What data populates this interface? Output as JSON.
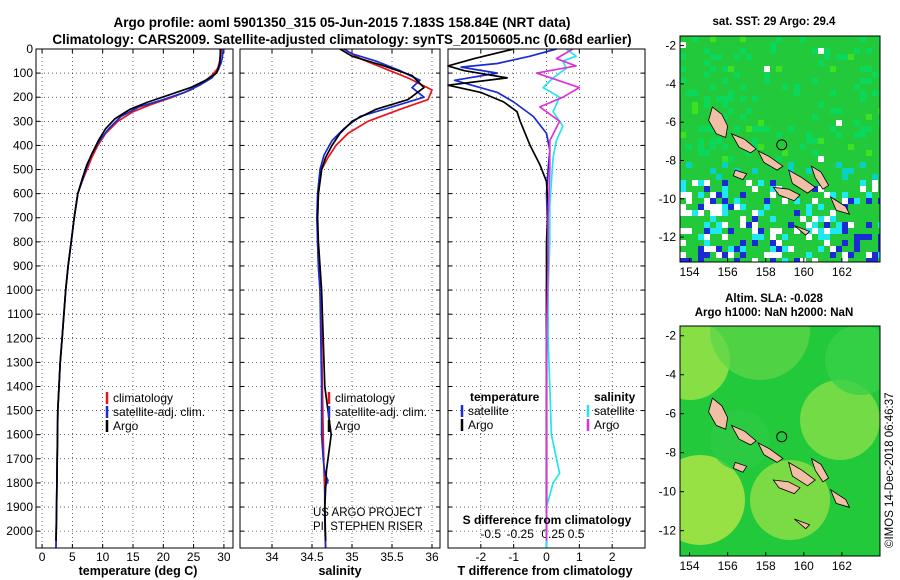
{
  "header": {
    "line1": "Argo profile: aoml 5901350_315 05-Jun-2015 7.183S 158.84E (NRT data)",
    "line2": "Climatology: CARS2009. Satellite-adjusted climatology: synTS_20150605.nc (0.68d earlier)"
  },
  "credits": {
    "project": "US ARGO PROJECT",
    "pi": "PI: STEPHEN RISER",
    "stamp": "©IMOS 14-Dec-2018 06:46:37"
  },
  "colors": {
    "climatology": "#e8141a",
    "satellite": "#1a2bd6",
    "argo": "#000000",
    "sat_salinity": "#22e6ee",
    "argo_salinity": "#e030d8",
    "map_bg": "#22c93a",
    "land": "#f1bfa6"
  },
  "chart_data": [
    {
      "id": "temperature",
      "type": "line",
      "xlabel": "temperature (deg C)",
      "xlim": [
        -1,
        31.5
      ],
      "xticks": [
        0,
        5,
        10,
        15,
        20,
        25,
        30
      ],
      "ylim": [
        0,
        2070
      ],
      "yticks": [
        0,
        100,
        200,
        300,
        400,
        500,
        600,
        700,
        800,
        900,
        1000,
        1100,
        1200,
        1300,
        1400,
        1500,
        1600,
        1700,
        1800,
        1900,
        2000
      ],
      "legend": [
        "climatology",
        "satellite-adj. clim.",
        "Argo"
      ],
      "series": [
        {
          "name": "climatology",
          "color": "#e8141a",
          "x": [
            29.6,
            29.5,
            29.3,
            29.0,
            28.0,
            26.5,
            24.5,
            21.5,
            18.0,
            15.0,
            12.5,
            10.5,
            9.2,
            8.2,
            7.4,
            6.6,
            5.9,
            5.3,
            4.8,
            4.3,
            3.9,
            3.6,
            3.3,
            3.0,
            2.8,
            2.6,
            2.5,
            2.4,
            2.3
          ],
          "y": [
            0,
            20,
            50,
            80,
            110,
            140,
            170,
            200,
            230,
            260,
            300,
            350,
            400,
            450,
            500,
            550,
            600,
            700,
            800,
            900,
            1000,
            1100,
            1200,
            1300,
            1400,
            1500,
            1700,
            1900,
            2070
          ]
        },
        {
          "name": "satellite-adj. clim.",
          "color": "#1a2bd6",
          "x": [
            29.9,
            29.8,
            29.7,
            29.5,
            29.0,
            28.0,
            26.0,
            23.5,
            20.0,
            16.0,
            13.0,
            11.0,
            9.5,
            8.3,
            7.5,
            6.7,
            5.9,
            5.3,
            4.8,
            4.3,
            3.9,
            3.6,
            3.3,
            3.0,
            2.8,
            2.6,
            2.5,
            2.4,
            2.3
          ],
          "y": [
            0,
            20,
            40,
            60,
            90,
            120,
            150,
            180,
            210,
            240,
            280,
            330,
            380,
            430,
            480,
            540,
            600,
            700,
            800,
            900,
            1000,
            1100,
            1200,
            1300,
            1400,
            1500,
            1700,
            1900,
            2070
          ]
        },
        {
          "name": "Argo",
          "color": "#000000",
          "x": [
            29.4,
            29.4,
            29.3,
            28.8,
            27.0,
            24.5,
            21.0,
            17.5,
            14.5,
            12.0,
            10.5,
            9.3,
            8.3,
            7.4,
            6.6,
            5.9,
            5.3,
            4.8,
            4.3,
            3.9,
            3.6,
            3.3,
            3.0,
            2.8,
            2.6,
            2.5,
            2.4,
            2.3
          ],
          "y": [
            0,
            20,
            60,
            100,
            130,
            160,
            190,
            220,
            250,
            290,
            330,
            380,
            430,
            480,
            540,
            600,
            700,
            800,
            900,
            1000,
            1100,
            1200,
            1300,
            1400,
            1500,
            1700,
            1900,
            2040
          ]
        }
      ]
    },
    {
      "id": "salinity",
      "type": "line",
      "xlabel": "salinity",
      "xlim": [
        33.6,
        36.1
      ],
      "xticks": [
        34,
        34.5,
        35,
        35.5,
        36
      ],
      "ylim": [
        0,
        2070
      ],
      "legend": [
        "climatology",
        "satellite-adj. clim.",
        "Argo"
      ],
      "series": [
        {
          "name": "climatology",
          "color": "#e8141a",
          "x": [
            34.9,
            35.1,
            35.4,
            35.7,
            36.0,
            35.95,
            35.6,
            35.2,
            34.95,
            34.8,
            34.7,
            34.62,
            34.58,
            34.57,
            34.57,
            34.58,
            34.6,
            34.62,
            34.63,
            34.64,
            34.65,
            34.66,
            34.66,
            34.67
          ],
          "y": [
            0,
            40,
            80,
            120,
            170,
            210,
            250,
            300,
            350,
            400,
            450,
            500,
            600,
            700,
            800,
            900,
            1000,
            1200,
            1400,
            1600,
            1750,
            1850,
            1950,
            2070
          ]
        },
        {
          "name": "satellite-adj. clim.",
          "color": "#1a2bd6",
          "x": [
            34.9,
            35.0,
            35.3,
            35.6,
            35.85,
            35.75,
            35.9,
            35.5,
            35.1,
            34.9,
            34.75,
            34.65,
            34.6,
            34.57,
            34.56,
            34.57,
            34.58,
            34.6,
            34.61,
            34.62,
            34.62,
            34.64,
            34.66,
            34.7,
            34.66,
            34.66,
            34.67
          ],
          "y": [
            0,
            20,
            50,
            90,
            130,
            160,
            200,
            240,
            280,
            330,
            380,
            440,
            500,
            600,
            700,
            800,
            900,
            1000,
            1200,
            1400,
            1600,
            1700,
            1760,
            1790,
            1820,
            1950,
            2070
          ]
        },
        {
          "name": "Argo",
          "color": "#000000",
          "x": [
            34.85,
            35.0,
            35.4,
            35.75,
            35.9,
            35.7,
            35.3,
            35.0,
            34.85,
            34.75,
            34.67,
            34.62,
            34.58,
            34.57,
            34.58,
            34.6,
            34.62,
            34.64,
            34.66,
            34.74,
            34.68,
            34.66,
            34.67
          ],
          "y": [
            0,
            30,
            70,
            110,
            160,
            210,
            250,
            300,
            350,
            400,
            450,
            500,
            600,
            700,
            800,
            900,
            1000,
            1200,
            1400,
            1600,
            1750,
            1900,
            2040
          ]
        }
      ]
    },
    {
      "id": "differences",
      "type": "line",
      "xlabel": "T difference from climatology",
      "xlabel_top": "S difference from climatology",
      "xlim": [
        -3,
        3
      ],
      "xticks": [
        -2,
        -1,
        0,
        1,
        2
      ],
      "xtick_labels": [
        "-2",
        "-1",
        "0",
        "1",
        "2"
      ],
      "xticks_s": [
        -1.7,
        -0.8,
        0.2,
        0.9
      ],
      "xtick_labels_s": [
        "-0.5",
        "-0.25",
        "0.25",
        "0.5"
      ],
      "ylim": [
        0,
        2070
      ],
      "legend_temperature": {
        "title": "temperature",
        "items": [
          "satellite",
          "Argo"
        ]
      },
      "legend_salinity": {
        "title": "salinity",
        "items": [
          "satellite",
          "Argo"
        ]
      },
      "series": [
        {
          "name": "temperature satellite",
          "color": "#1a2bd6",
          "x": [
            0.3,
            -0.5,
            -1.5,
            -2.6,
            -1.5,
            -2.8,
            -1.5,
            -1.0,
            -0.4,
            0.0,
            0.1,
            0.05,
            0.0,
            0.05,
            0.0,
            0.0,
            0.0,
            0.0,
            0.0,
            0.0
          ],
          "y": [
            0,
            30,
            60,
            75,
            100,
            130,
            180,
            220,
            280,
            350,
            420,
            500,
            600,
            800,
            1000,
            1200,
            1400,
            1600,
            1800,
            2070
          ]
        },
        {
          "name": "temperature Argo",
          "color": "#000000",
          "x": [
            -1.0,
            -2.2,
            -3.0,
            -2.5,
            -1.2,
            -3.0,
            -2.0,
            -1.3,
            -0.9,
            -0.8,
            -0.5,
            -0.2,
            0.0,
            0.05,
            0.0,
            0.0,
            0.0,
            0.0,
            0.0,
            0.0
          ],
          "y": [
            0,
            40,
            70,
            90,
            120,
            150,
            180,
            220,
            260,
            300,
            400,
            480,
            550,
            650,
            800,
            1000,
            1200,
            1500,
            1800,
            2040
          ]
        },
        {
          "name": "salinity satellite",
          "color": "#22e6ee",
          "x": [
            0.6,
            0.9,
            0.5,
            0.6,
            0.2,
            -0.1,
            0.4,
            0.2,
            0.5,
            0.3,
            0.2,
            0.15,
            0.1,
            0.1,
            0.05,
            0.05,
            0.1,
            0.15,
            0.4,
            0.2,
            0.0,
            0.0
          ],
          "y": [
            0,
            30,
            50,
            80,
            120,
            160,
            200,
            260,
            320,
            380,
            450,
            550,
            650,
            800,
            1000,
            1200,
            1400,
            1600,
            1760,
            1800,
            1900,
            2070
          ]
        },
        {
          "name": "salinity Argo",
          "color": "#e030d8",
          "x": [
            0.8,
            0.3,
            0.9,
            -0.3,
            1.0,
            0.5,
            -0.2,
            0.4,
            0.1,
            0.1,
            0.05,
            0.05,
            0.0,
            0.0,
            0.0,
            0.0
          ],
          "y": [
            0,
            40,
            70,
            100,
            160,
            200,
            240,
            300,
            380,
            500,
            700,
            900,
            1200,
            1500,
            1800,
            2040
          ]
        }
      ]
    },
    {
      "id": "sst-map",
      "type": "heatmap",
      "title": "sat. SST: 29 Argo: 29.4",
      "xlim": [
        153.5,
        164
      ],
      "ylim": [
        -13.3,
        -1.5
      ],
      "xticks": [
        154,
        156,
        158,
        160,
        162
      ],
      "yticks": [
        -2,
        -4,
        -6,
        -8,
        -10,
        -12
      ],
      "marker": {
        "lon": 158.84,
        "lat": -7.183
      }
    },
    {
      "id": "sla-map",
      "type": "heatmap",
      "title": "Altim. SLA: -0.028",
      "subtitle": "Argo h1000: NaN h2000: NaN",
      "xlim": [
        153.5,
        164
      ],
      "ylim": [
        -13.3,
        -1.5
      ],
      "xticks": [
        154,
        156,
        158,
        160,
        162
      ],
      "yticks": [
        -2,
        -4,
        -6,
        -8,
        -10,
        -12
      ],
      "marker": {
        "lon": 158.84,
        "lat": -7.183
      }
    }
  ]
}
